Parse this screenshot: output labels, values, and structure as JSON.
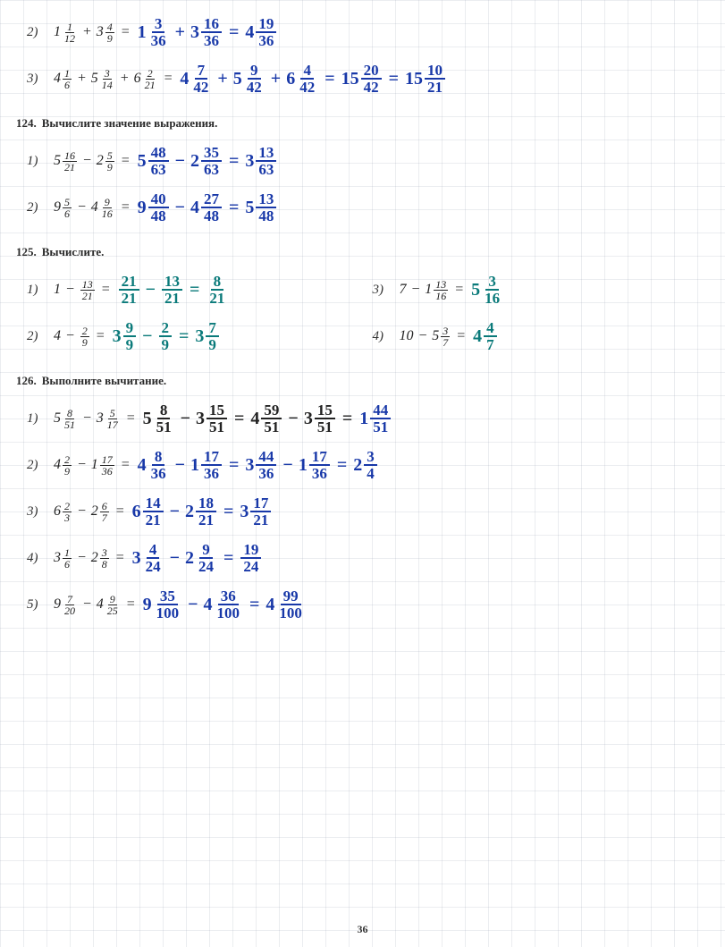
{
  "page_number": "36",
  "colors": {
    "handwriting_blue": "#1838a8",
    "handwriting_teal": "#0a7a7a",
    "printed_black": "#222222",
    "grid_line": "rgba(100,110,140,0.18)"
  },
  "sections": [
    {
      "number": "",
      "title": "",
      "problems": [
        {
          "index": "2)",
          "printed": [
            {
              "t": "mixed",
              "w": "1",
              "n": "1",
              "d": "12"
            },
            {
              "t": "op",
              "v": "+"
            },
            {
              "t": "mixed",
              "w": "3",
              "n": "4",
              "d": "9"
            },
            {
              "t": "eq"
            }
          ],
          "hand": [
            {
              "c": "blue",
              "parts": [
                {
                  "t": "mixed",
                  "w": "1",
                  "n": "3",
                  "d": "36"
                },
                {
                  "t": "op",
                  "v": "+"
                },
                {
                  "t": "mixed",
                  "w": "3",
                  "n": "16",
                  "d": "36"
                },
                {
                  "t": "eq"
                },
                {
                  "t": "mixed",
                  "w": "4",
                  "n": "19",
                  "d": "36"
                }
              ]
            }
          ]
        },
        {
          "index": "3)",
          "printed": [
            {
              "t": "mixed",
              "w": "4",
              "n": "1",
              "d": "6"
            },
            {
              "t": "op",
              "v": "+"
            },
            {
              "t": "mixed",
              "w": "5",
              "n": "3",
              "d": "14"
            },
            {
              "t": "op",
              "v": "+"
            },
            {
              "t": "mixed",
              "w": "6",
              "n": "2",
              "d": "21"
            },
            {
              "t": "eq"
            }
          ],
          "hand": [
            {
              "c": "blue",
              "parts": [
                {
                  "t": "mixed",
                  "w": "4",
                  "n": "7",
                  "d": "42"
                },
                {
                  "t": "op",
                  "v": "+"
                },
                {
                  "t": "mixed",
                  "w": "5",
                  "n": "9",
                  "d": "42"
                },
                {
                  "t": "op",
                  "v": "+"
                },
                {
                  "t": "mixed",
                  "w": "6",
                  "n": "4",
                  "d": "42"
                },
                {
                  "t": "eq"
                },
                {
                  "t": "mixed",
                  "w": "15",
                  "n": "20",
                  "d": "42"
                },
                {
                  "t": "eq"
                },
                {
                  "t": "mixed",
                  "w": "15",
                  "n": "10",
                  "d": "21"
                }
              ]
            }
          ]
        }
      ]
    },
    {
      "number": "124.",
      "title": "Вычислите значение выражения.",
      "problems": [
        {
          "index": "1)",
          "printed": [
            {
              "t": "mixed",
              "w": "5",
              "n": "16",
              "d": "21"
            },
            {
              "t": "op",
              "v": "−"
            },
            {
              "t": "mixed",
              "w": "2",
              "n": "5",
              "d": "9"
            },
            {
              "t": "eq"
            }
          ],
          "hand": [
            {
              "c": "blue",
              "parts": [
                {
                  "t": "mixed",
                  "w": "5",
                  "n": "48",
                  "d": "63"
                },
                {
                  "t": "op",
                  "v": "−"
                },
                {
                  "t": "mixed",
                  "w": "2",
                  "n": "35",
                  "d": "63"
                },
                {
                  "t": "eq"
                },
                {
                  "t": "mixed",
                  "w": "3",
                  "n": "13",
                  "d": "63"
                }
              ]
            }
          ]
        },
        {
          "index": "2)",
          "printed": [
            {
              "t": "mixed",
              "w": "9",
              "n": "5",
              "d": "6"
            },
            {
              "t": "op",
              "v": "−"
            },
            {
              "t": "mixed",
              "w": "4",
              "n": "9",
              "d": "16"
            },
            {
              "t": "eq"
            }
          ],
          "hand": [
            {
              "c": "blue",
              "parts": [
                {
                  "t": "mixed",
                  "w": "9",
                  "n": "40",
                  "d": "48"
                },
                {
                  "t": "op",
                  "v": "−"
                },
                {
                  "t": "mixed",
                  "w": "4",
                  "n": "27",
                  "d": "48"
                },
                {
                  "t": "eq"
                },
                {
                  "t": "mixed",
                  "w": "5",
                  "n": "13",
                  "d": "48"
                }
              ]
            }
          ]
        }
      ]
    },
    {
      "number": "125.",
      "title": "Вычислите.",
      "split_problems": [
        {
          "left": {
            "index": "1)",
            "printed": [
              {
                "t": "txt",
                "v": "1"
              },
              {
                "t": "op",
                "v": "−"
              },
              {
                "t": "frac",
                "n": "13",
                "d": "21"
              },
              {
                "t": "eq"
              }
            ],
            "hand": [
              {
                "c": "teal",
                "parts": [
                  {
                    "t": "frac",
                    "n": "21",
                    "d": "21"
                  },
                  {
                    "t": "op",
                    "v": "−"
                  },
                  {
                    "t": "frac",
                    "n": "13",
                    "d": "21"
                  },
                  {
                    "t": "eq"
                  },
                  {
                    "t": "frac",
                    "n": "8",
                    "d": "21"
                  }
                ]
              }
            ]
          },
          "right": {
            "index": "3)",
            "printed": [
              {
                "t": "txt",
                "v": "7"
              },
              {
                "t": "op",
                "v": "−"
              },
              {
                "t": "mixed",
                "w": "1",
                "n": "13",
                "d": "16"
              },
              {
                "t": "eq"
              }
            ],
            "hand": [
              {
                "c": "teal",
                "parts": [
                  {
                    "t": "mixed",
                    "w": "5",
                    "n": "3",
                    "d": "16"
                  }
                ]
              }
            ]
          }
        },
        {
          "left": {
            "index": "2)",
            "printed": [
              {
                "t": "txt",
                "v": "4"
              },
              {
                "t": "op",
                "v": "−"
              },
              {
                "t": "frac",
                "n": "2",
                "d": "9"
              },
              {
                "t": "eq"
              }
            ],
            "hand": [
              {
                "c": "teal",
                "parts": [
                  {
                    "t": "mixed",
                    "w": "3",
                    "n": "9",
                    "d": "9"
                  },
                  {
                    "t": "op",
                    "v": "−"
                  },
                  {
                    "t": "frac",
                    "n": "2",
                    "d": "9"
                  },
                  {
                    "t": "eq"
                  },
                  {
                    "t": "mixed",
                    "w": "3",
                    "n": "7",
                    "d": "9"
                  }
                ]
              }
            ]
          },
          "right": {
            "index": "4)",
            "printed": [
              {
                "t": "txt",
                "v": "10"
              },
              {
                "t": "op",
                "v": "−"
              },
              {
                "t": "mixed",
                "w": "5",
                "n": "3",
                "d": "7"
              },
              {
                "t": "eq"
              }
            ],
            "hand": [
              {
                "c": "teal",
                "parts": [
                  {
                    "t": "mixed",
                    "w": "4",
                    "n": "4",
                    "d": "7"
                  }
                ]
              }
            ]
          }
        }
      ]
    },
    {
      "number": "126.",
      "title": "Выполните вычитание.",
      "problems": [
        {
          "index": "1)",
          "printed": [
            {
              "t": "mixed",
              "w": "5",
              "n": "8",
              "d": "51"
            },
            {
              "t": "op",
              "v": "−"
            },
            {
              "t": "mixed",
              "w": "3",
              "n": "5",
              "d": "17"
            },
            {
              "t": "eq"
            }
          ],
          "hand": [
            {
              "c": "black",
              "parts": [
                {
                  "t": "mixed",
                  "w": "5",
                  "n": "8",
                  "d": "51"
                },
                {
                  "t": "op",
                  "v": "−"
                },
                {
                  "t": "mixed",
                  "w": "3",
                  "n": "15",
                  "d": "51"
                },
                {
                  "t": "eq"
                },
                {
                  "t": "mixed",
                  "w": "4",
                  "n": "59",
                  "d": "51"
                },
                {
                  "t": "op",
                  "v": "−"
                },
                {
                  "t": "mixed",
                  "w": "3",
                  "n": "15",
                  "d": "51"
                },
                {
                  "t": "eq"
                }
              ]
            },
            {
              "c": "blue",
              "parts": [
                {
                  "t": "mixed",
                  "w": "1",
                  "n": "44",
                  "d": "51"
                }
              ]
            }
          ]
        },
        {
          "index": "2)",
          "printed": [
            {
              "t": "mixed",
              "w": "4",
              "n": "2",
              "d": "9"
            },
            {
              "t": "op",
              "v": "−"
            },
            {
              "t": "mixed",
              "w": "1",
              "n": "17",
              "d": "36"
            },
            {
              "t": "eq"
            }
          ],
          "hand": [
            {
              "c": "blue",
              "parts": [
                {
                  "t": "mixed",
                  "w": "4",
                  "n": "8",
                  "d": "36"
                },
                {
                  "t": "op",
                  "v": "−"
                },
                {
                  "t": "mixed",
                  "w": "1",
                  "n": "17",
                  "d": "36"
                },
                {
                  "t": "eq"
                },
                {
                  "t": "mixed",
                  "w": "3",
                  "n": "44",
                  "d": "36"
                },
                {
                  "t": "op",
                  "v": "−"
                },
                {
                  "t": "mixed",
                  "w": "1",
                  "n": "17",
                  "d": "36"
                },
                {
                  "t": "eq"
                },
                {
                  "t": "mixed",
                  "w": "2",
                  "n": "3",
                  "d": "4"
                }
              ]
            }
          ]
        },
        {
          "index": "3)",
          "printed": [
            {
              "t": "mixed",
              "w": "6",
              "n": "2",
              "d": "3"
            },
            {
              "t": "op",
              "v": "−"
            },
            {
              "t": "mixed",
              "w": "2",
              "n": "6",
              "d": "7"
            },
            {
              "t": "eq"
            }
          ],
          "hand": [
            {
              "c": "blue",
              "parts": [
                {
                  "t": "mixed",
                  "w": "6",
                  "n": "14",
                  "d": "21"
                },
                {
                  "t": "op",
                  "v": "−"
                },
                {
                  "t": "mixed",
                  "w": "2",
                  "n": "18",
                  "d": "21"
                },
                {
                  "t": "eq"
                },
                {
                  "t": "mixed",
                  "w": "3",
                  "n": "17",
                  "d": "21"
                }
              ]
            }
          ]
        },
        {
          "index": "4)",
          "printed": [
            {
              "t": "mixed",
              "w": "3",
              "n": "1",
              "d": "6"
            },
            {
              "t": "op",
              "v": "−"
            },
            {
              "t": "mixed",
              "w": "2",
              "n": "3",
              "d": "8"
            },
            {
              "t": "eq"
            }
          ],
          "hand": [
            {
              "c": "blue",
              "parts": [
                {
                  "t": "mixed",
                  "w": "3",
                  "n": "4",
                  "d": "24"
                },
                {
                  "t": "op",
                  "v": "−"
                },
                {
                  "t": "mixed",
                  "w": "2",
                  "n": "9",
                  "d": "24"
                },
                {
                  "t": "eq"
                },
                {
                  "t": "frac",
                  "n": "19",
                  "d": "24"
                }
              ]
            }
          ]
        },
        {
          "index": "5)",
          "printed": [
            {
              "t": "mixed",
              "w": "9",
              "n": "7",
              "d": "20"
            },
            {
              "t": "op",
              "v": "−"
            },
            {
              "t": "mixed",
              "w": "4",
              "n": "9",
              "d": "25"
            },
            {
              "t": "eq"
            }
          ],
          "hand": [
            {
              "c": "blue",
              "parts": [
                {
                  "t": "mixed",
                  "w": "9",
                  "n": "35",
                  "d": "100"
                },
                {
                  "t": "op",
                  "v": "−"
                },
                {
                  "t": "mixed",
                  "w": "4",
                  "n": "36",
                  "d": "100"
                },
                {
                  "t": "eq"
                },
                {
                  "t": "mixed",
                  "w": "4",
                  "n": "99",
                  "d": "100"
                }
              ]
            }
          ]
        }
      ]
    }
  ]
}
